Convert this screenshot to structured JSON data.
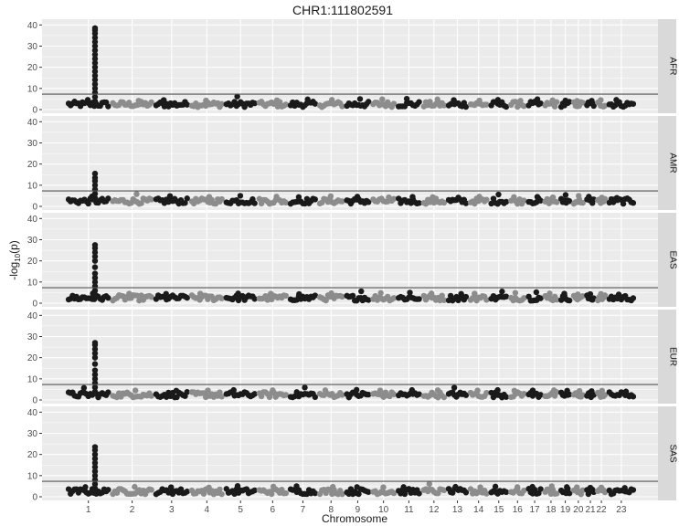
{
  "chart_data": {
    "type": "scatter",
    "title": "CHR1:111802591",
    "xlabel": "Chromosome",
    "ylabel_prefix": "-log",
    "ylabel_sub": "10",
    "ylabel_suffix": "(p)",
    "ylim": [
      0,
      41
    ],
    "yticks": [
      0,
      10,
      20,
      30,
      40
    ],
    "threshold": 7.3,
    "chromosomes": [
      "1",
      "2",
      "3",
      "4",
      "5",
      "6",
      "7",
      "8",
      "9",
      "10",
      "11",
      "12",
      "13",
      "14",
      "15",
      "16",
      "17",
      "18",
      "19",
      "20",
      "21",
      "22",
      "23"
    ],
    "colors": {
      "odd": "#1a1a1a",
      "even": "#8c8c8c",
      "panel": "#ebebeb",
      "strip": "#d9d9d9",
      "grid": "#ffffff"
    },
    "panels": [
      {
        "name": "AFR",
        "peak_max": 38.5,
        "peak_values": [
          4,
          6,
          8,
          10,
          12,
          14,
          16,
          18,
          20,
          22,
          24,
          26,
          28,
          30,
          32,
          34,
          36,
          37.5,
          38.5
        ],
        "background_max": [
          4.6,
          4.2,
          4.5,
          4.3,
          6.2,
          4.4,
          4.8,
          4.6,
          5.0,
          4.9,
          5.1,
          4.8,
          4.5,
          4.3,
          4.6,
          4.2,
          4.9,
          4.4,
          4.3,
          4.1,
          4.2,
          4.5,
          4.6
        ]
      },
      {
        "name": "AMR",
        "peak_max": 15.5,
        "peak_values": [
          4,
          6,
          8,
          10,
          12,
          13.5,
          15.5
        ],
        "background_max": [
          4.7,
          5.8,
          4.9,
          4.5,
          5.0,
          4.6,
          4.4,
          4.8,
          4.6,
          4.3,
          4.5,
          4.4,
          4.2,
          4.6,
          5.6,
          4.4,
          4.5,
          4.3,
          5.4,
          5.0,
          4.6,
          4.2,
          4.0
        ]
      },
      {
        "name": "EAS",
        "peak_max": 27.5,
        "peak_values": [
          4,
          6,
          8,
          10,
          12,
          14,
          17,
          20,
          22,
          24,
          26,
          27.5
        ],
        "background_max": [
          4.6,
          4.5,
          4.4,
          4.5,
          4.6,
          4.5,
          4.3,
          4.7,
          5.6,
          4.8,
          5.0,
          4.6,
          4.4,
          4.5,
          5.5,
          4.9,
          5.2,
          4.6,
          4.5,
          4.2,
          4.3,
          4.4,
          4.1
        ]
      },
      {
        "name": "EUR",
        "peak_max": 27,
        "peak_values": [
          4,
          6,
          8,
          10,
          12,
          14,
          17,
          20,
          22,
          24,
          26,
          27
        ],
        "background_max": [
          5.7,
          4.5,
          4.4,
          4.5,
          4.7,
          4.6,
          5.9,
          4.6,
          4.8,
          4.5,
          4.7,
          4.6,
          5.8,
          4.5,
          4.7,
          4.4,
          4.5,
          4.6,
          4.4,
          4.3,
          4.2,
          4.4,
          4.0
        ]
      },
      {
        "name": "SAS",
        "peak_max": 23.5,
        "peak_values": [
          4,
          6,
          8,
          10,
          12,
          14,
          16,
          18,
          20,
          22,
          23.5
        ],
        "background_max": [
          4.6,
          4.7,
          4.5,
          4.4,
          5.1,
          4.8,
          5.0,
          4.7,
          4.6,
          4.5,
          4.6,
          6.1,
          4.7,
          4.5,
          4.8,
          4.6,
          4.7,
          5.0,
          4.6,
          4.5,
          4.3,
          4.4,
          4.2
        ]
      }
    ]
  }
}
